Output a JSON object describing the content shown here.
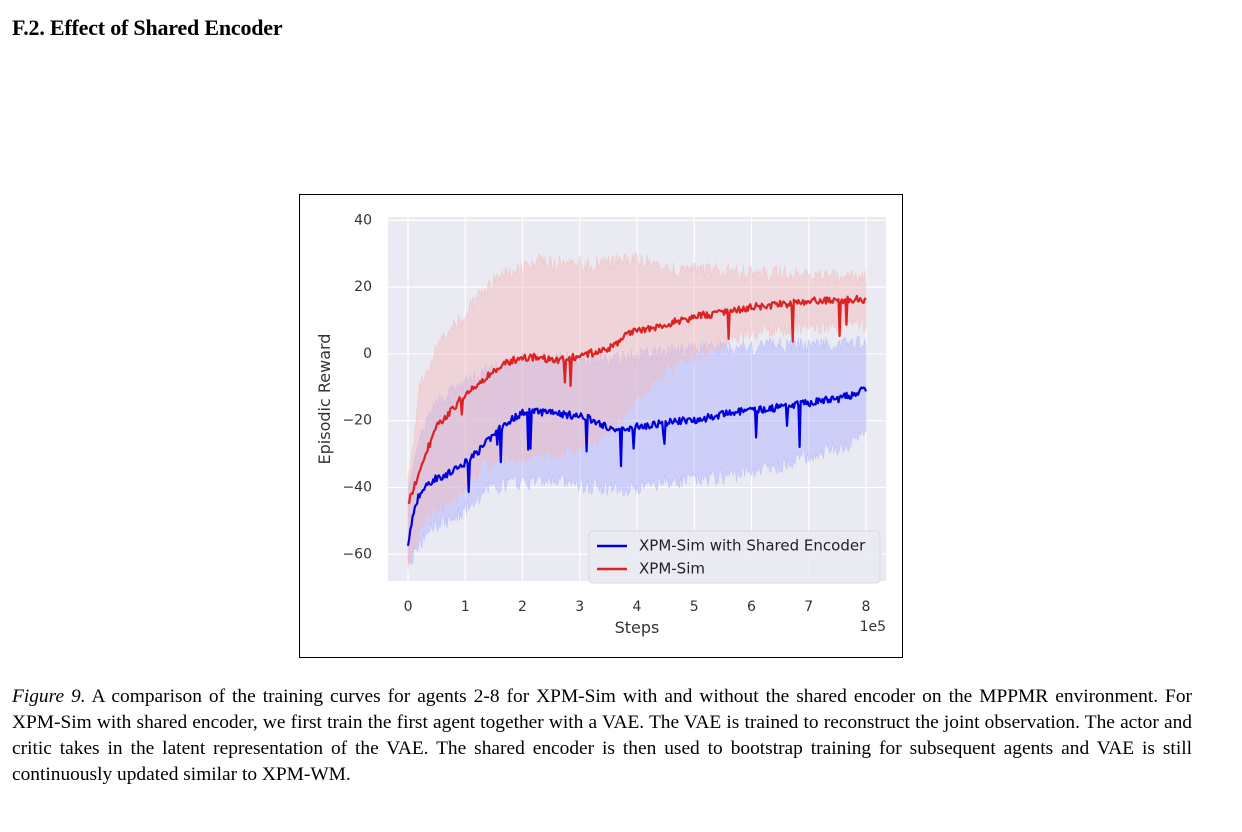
{
  "section": {
    "title": "F.2. Effect of Shared Encoder"
  },
  "chart_data": {
    "type": "line",
    "title": "",
    "xlabel": "Steps",
    "ylabel": "Episodic Reward",
    "x_multiplier": "1e5",
    "xlim": [
      -0.35,
      8.35
    ],
    "ylim": [
      -68,
      41
    ],
    "x_ticks": [
      0,
      1,
      2,
      3,
      4,
      5,
      6,
      7,
      8
    ],
    "x_tick_labels": [
      "0",
      "1",
      "2",
      "3",
      "4",
      "5",
      "6",
      "7",
      "8"
    ],
    "y_ticks": [
      -60,
      -40,
      -20,
      0,
      20,
      40
    ],
    "y_tick_labels": [
      "−60",
      "−40",
      "−20",
      "0",
      "20",
      "40"
    ],
    "grid": true,
    "background": "#eaeaf2",
    "legend_position": "lower-right",
    "series": [
      {
        "name": "XPM-Sim with Shared Encoder",
        "color": "#0000dd",
        "band_color": "#aab0ff",
        "x": [
          0,
          0.1,
          0.2,
          0.35,
          0.5,
          0.7,
          0.9,
          1.1,
          1.3,
          1.5,
          1.7,
          1.9,
          2.1,
          2.3,
          2.5,
          2.7,
          2.9,
          3.1,
          3.3,
          3.5,
          3.7,
          3.9,
          4.1,
          4.3,
          4.5,
          4.8,
          5.1,
          5.4,
          5.7,
          6.0,
          6.3,
          6.6,
          6.9,
          7.2,
          7.5,
          7.8,
          8.0
        ],
        "mean": [
          -57,
          -47,
          -42,
          -39,
          -37,
          -36,
          -34,
          -31,
          -28,
          -24,
          -21,
          -18.5,
          -17,
          -17.5,
          -17,
          -18,
          -18.5,
          -19,
          -20.5,
          -22,
          -23,
          -22,
          -21.5,
          -21,
          -20.5,
          -20,
          -19.5,
          -18.5,
          -17.5,
          -17,
          -16.5,
          -15.5,
          -15,
          -14,
          -13.5,
          -12,
          -10.5
        ],
        "upper": [
          -42,
          -35,
          -26,
          -20,
          -15,
          -12,
          -10,
          -8,
          -6,
          -4,
          -3,
          -2,
          -1.5,
          -1,
          -1,
          -1.5,
          -2,
          -2.5,
          -2,
          -2,
          -1.5,
          -1,
          -0.5,
          0,
          0.5,
          1,
          1.5,
          1.5,
          2,
          2,
          2.5,
          2.5,
          3,
          3,
          3,
          3,
          3
        ],
        "lower": [
          -64,
          -60,
          -57,
          -53,
          -51,
          -50,
          -48,
          -44,
          -42,
          -40,
          -39,
          -38.5,
          -38.5,
          -38,
          -38,
          -38.5,
          -39,
          -39.5,
          -39.5,
          -40,
          -40.5,
          -40,
          -39.5,
          -39,
          -38.5,
          -38,
          -37.5,
          -37,
          -36,
          -35,
          -34,
          -33,
          -31,
          -29.5,
          -28,
          -26,
          -24
        ]
      },
      {
        "name": "XPM-Sim",
        "color": "#dd2222",
        "band_color": "#f5b8b8",
        "x": [
          0,
          0.1,
          0.2,
          0.35,
          0.5,
          0.7,
          0.9,
          1.1,
          1.3,
          1.5,
          1.7,
          1.9,
          2.1,
          2.3,
          2.5,
          2.7,
          2.9,
          3.1,
          3.3,
          3.5,
          3.7,
          3.9,
          4.1,
          4.3,
          4.5,
          4.8,
          5.1,
          5.4,
          5.7,
          6.0,
          6.3,
          6.6,
          6.9,
          7.2,
          7.5,
          7.8,
          8.0
        ],
        "mean": [
          -45,
          -40,
          -36,
          -28,
          -22,
          -18,
          -14,
          -11,
          -8,
          -5,
          -3,
          -1.5,
          -1,
          -1,
          -2,
          -1.5,
          -1,
          0,
          0.5,
          1.5,
          4,
          6.5,
          7.5,
          8,
          9,
          10,
          11.5,
          12,
          13,
          14,
          14.5,
          15,
          15.5,
          16,
          16,
          16.5,
          16
        ],
        "upper": [
          -38,
          -28,
          -10,
          -4,
          2,
          6,
          10,
          14,
          18,
          22,
          24,
          25,
          26,
          28,
          27,
          27,
          27,
          27,
          27,
          27,
          28,
          28,
          27.5,
          27,
          26,
          25,
          25,
          25,
          24.5,
          24,
          24,
          24,
          23.5,
          23.5,
          23,
          23,
          23
        ],
        "lower": [
          -63,
          -58,
          -54,
          -49,
          -46,
          -44,
          -42,
          -38,
          -34,
          -32,
          -31,
          -30.5,
          -30,
          -30,
          -30.5,
          -29,
          -28,
          -27,
          -26,
          -24,
          -20,
          -16,
          -12,
          -8,
          -5,
          -2,
          1,
          3,
          5,
          6,
          7,
          7.5,
          8,
          8.5,
          8.5,
          9,
          9
        ]
      }
    ]
  },
  "caption": {
    "label": "Figure 9.",
    "text": " A comparison of the training curves for agents 2-8 for XPM-Sim with and without the shared encoder on the MPPMR environment. For XPM-Sim with shared encoder, we first train the first agent together with a VAE. The VAE is trained to reconstruct the joint observation. The actor and critic takes in the latent representation of the VAE. The shared encoder is then used to bootstrap training for subsequent agents and VAE is still continuously updated similar to XPM-WM."
  }
}
